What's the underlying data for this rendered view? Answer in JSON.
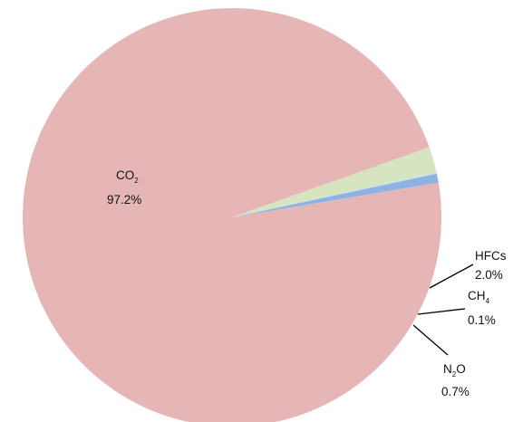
{
  "chart_data": {
    "type": "pie",
    "title": "",
    "slices": [
      {
        "key": "co2",
        "label_main": "CO",
        "label_sub": "2",
        "label_after": "",
        "value": 97.2,
        "value_label": "97.2%",
        "color": "#e6b6b6"
      },
      {
        "key": "hfcs",
        "label_main": "HFCs",
        "label_sub": "",
        "label_after": "",
        "value": 2.0,
        "value_label": "2.0%",
        "color": "#d7e4c0"
      },
      {
        "key": "ch4",
        "label_main": "CH",
        "label_sub": "4",
        "label_after": "",
        "value": 0.1,
        "value_label": "0.1%",
        "color": "#c9dff0"
      },
      {
        "key": "n2o",
        "label_main": "N",
        "label_sub": "2",
        "label_after": "O",
        "value": 0.7,
        "value_label": "0.7%",
        "color": "#8db3e2"
      }
    ],
    "legend": "none",
    "label_placement": "CO2 inside; others outside with leader lines"
  }
}
